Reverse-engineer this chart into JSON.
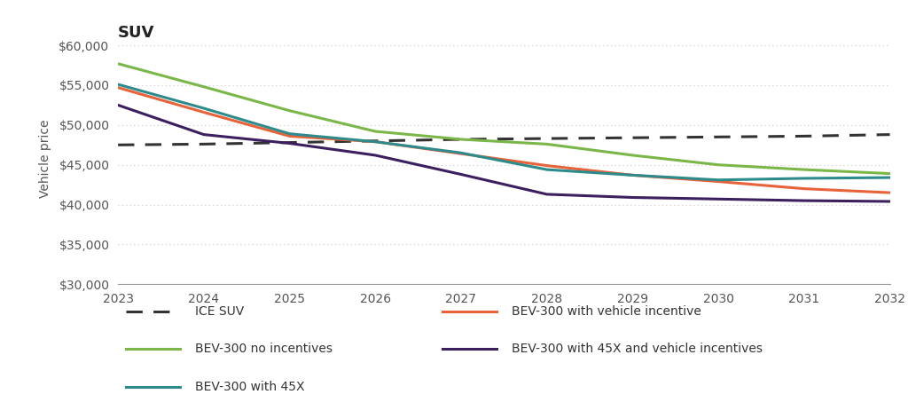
{
  "title": "SUV",
  "ylabel": "Vehicle price",
  "years": [
    2023,
    2024,
    2025,
    2026,
    2027,
    2028,
    2029,
    2030,
    2031,
    2032
  ],
  "series": {
    "ICE SUV": {
      "values": [
        47500,
        47600,
        47800,
        48000,
        48200,
        48300,
        48400,
        48500,
        48600,
        48800
      ],
      "color": "#333333",
      "linestyle": "dashed",
      "linewidth": 2.2,
      "dashes": [
        6,
        4
      ]
    },
    "BEV-300 no incentives": {
      "values": [
        57700,
        54800,
        51800,
        49200,
        48200,
        47600,
        46200,
        45000,
        44400,
        43900
      ],
      "color": "#7ab648",
      "linestyle": "solid",
      "linewidth": 2.2
    },
    "BEV-300 with vehicle incentive": {
      "values": [
        54700,
        51600,
        48600,
        47900,
        46400,
        44900,
        43700,
        42900,
        42000,
        41500
      ],
      "color": "#e8623a",
      "linestyle": "solid",
      "linewidth": 2.2
    },
    "BEV-300 with 45X": {
      "values": [
        55100,
        52100,
        48900,
        47900,
        46500,
        44400,
        43700,
        43100,
        43300,
        43400
      ],
      "color": "#2e8b8b",
      "linestyle": "solid",
      "linewidth": 2.2
    },
    "BEV-300 with 45X and vehicle incentives": {
      "values": [
        52500,
        48800,
        47700,
        46200,
        43800,
        41300,
        40900,
        40700,
        40500,
        40400
      ],
      "color": "#3b1f5e",
      "linestyle": "solid",
      "linewidth": 2.2
    }
  },
  "ylim": [
    30000,
    61500
  ],
  "yticks": [
    30000,
    35000,
    40000,
    45000,
    50000,
    55000,
    60000
  ],
  "background_color": "#ffffff",
  "grid_color": "#c8c8c8",
  "title_fontsize": 13,
  "label_fontsize": 10,
  "tick_fontsize": 10,
  "legend_fontsize": 10,
  "legend_order_left": [
    "ICE SUV",
    "BEV-300 no incentives",
    "BEV-300 with 45X"
  ],
  "legend_order_right": [
    "BEV-300 with vehicle incentive",
    "BEV-300 with 45X and vehicle incentives"
  ]
}
